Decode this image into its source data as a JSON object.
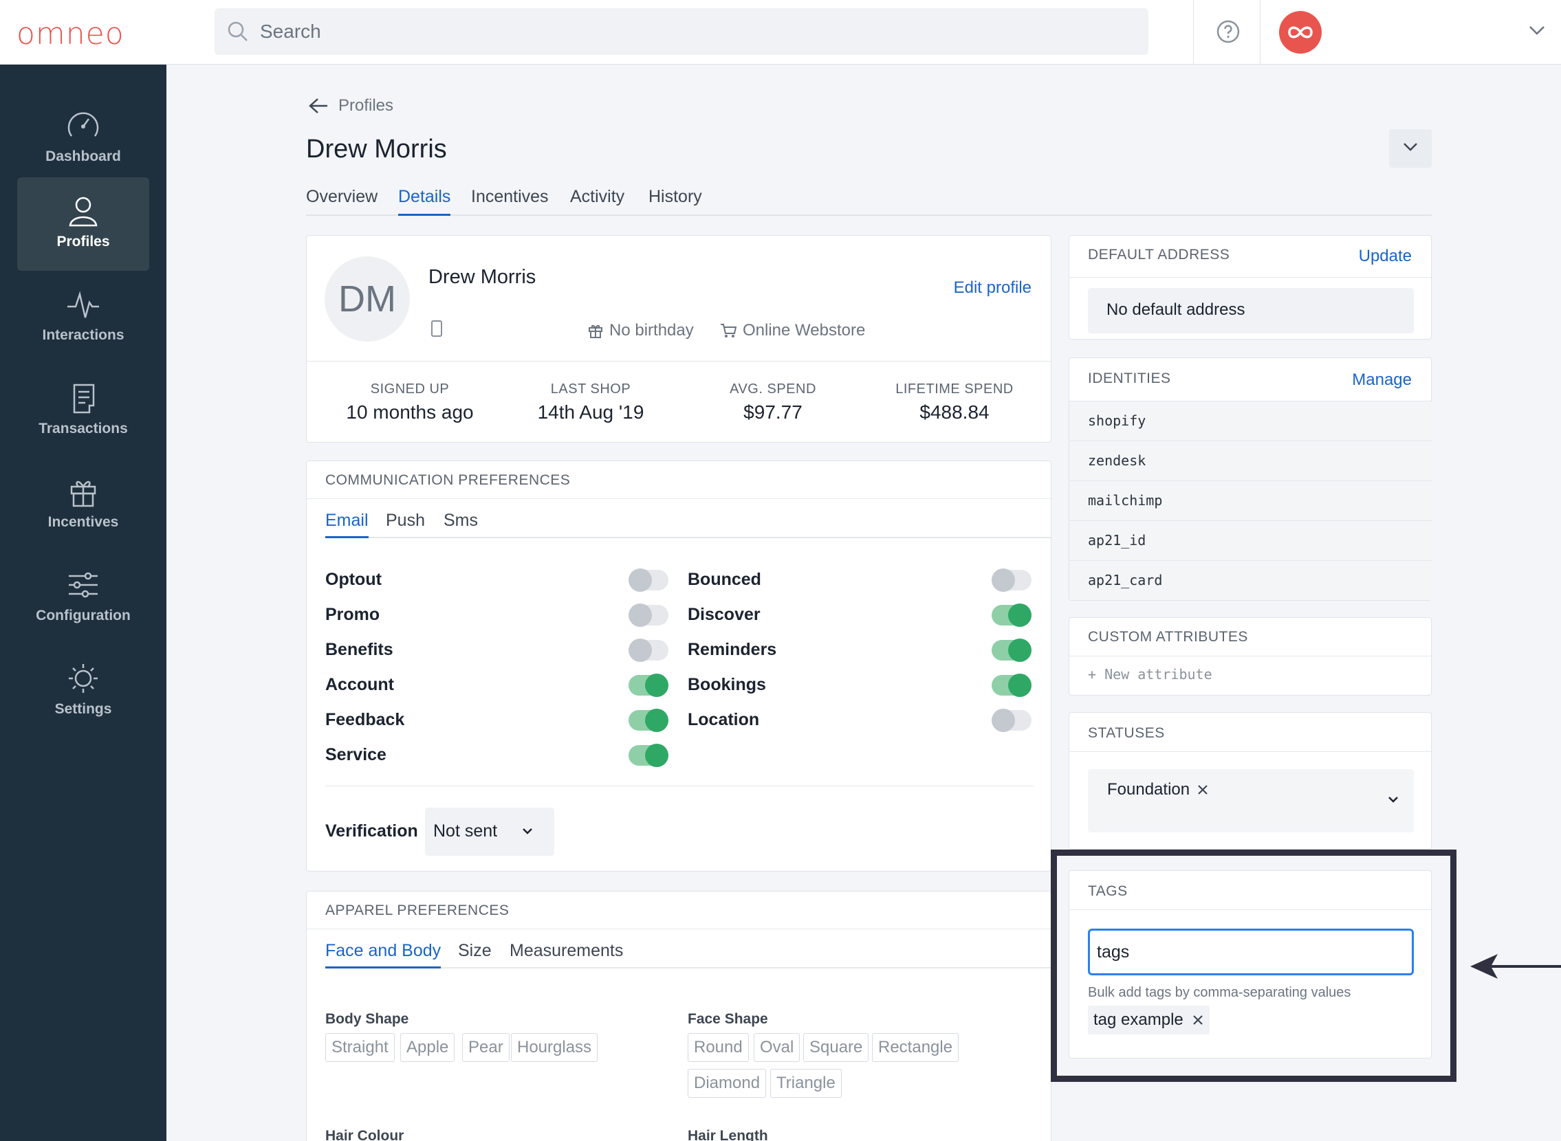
{
  "app": {
    "logo_text": "omneo",
    "brand_color": "#e8554e",
    "accent_color": "#1a64c8",
    "search": {
      "placeholder": "Search"
    }
  },
  "sidebar": {
    "items": [
      {
        "label": "Dashboard",
        "icon": "gauge-icon"
      },
      {
        "label": "Profiles",
        "icon": "user-icon",
        "active": true
      },
      {
        "label": "Interactions",
        "icon": "pulse-icon"
      },
      {
        "label": "Transactions",
        "icon": "receipt-icon"
      },
      {
        "label": "Incentives",
        "icon": "gift-icon"
      },
      {
        "label": "Configuration",
        "icon": "sliders-icon"
      },
      {
        "label": "Settings",
        "icon": "gear-icon"
      }
    ]
  },
  "header": {
    "back_label": "Profiles",
    "title": "Drew Morris",
    "tabs": [
      "Overview",
      "Details",
      "Incentives",
      "Activity",
      "History"
    ],
    "active_tab": "Details"
  },
  "profile": {
    "initials": "DM",
    "name": "Drew Morris",
    "edit_label": "Edit profile",
    "birthday": "No birthday",
    "source": "Online Webstore",
    "stats": [
      {
        "label": "SIGNED UP",
        "value": "10 months ago"
      },
      {
        "label": "LAST SHOP",
        "value": "14th Aug '19"
      },
      {
        "label": "AVG. SPEND",
        "value": "$97.77"
      },
      {
        "label": "LIFETIME SPEND",
        "value": "$488.84"
      }
    ]
  },
  "communication": {
    "heading": "COMMUNICATION PREFERENCES",
    "tabs": [
      "Email",
      "Push",
      "Sms"
    ],
    "active_tab": "Email",
    "left": [
      {
        "label": "Optout",
        "on": false
      },
      {
        "label": "Promo",
        "on": false
      },
      {
        "label": "Benefits",
        "on": false
      },
      {
        "label": "Account",
        "on": true
      },
      {
        "label": "Feedback",
        "on": true
      },
      {
        "label": "Service",
        "on": true
      }
    ],
    "right": [
      {
        "label": "Bounced",
        "on": false
      },
      {
        "label": "Discover",
        "on": true
      },
      {
        "label": "Reminders",
        "on": true
      },
      {
        "label": "Bookings",
        "on": true
      },
      {
        "label": "Location",
        "on": false
      }
    ],
    "verification_label": "Verification",
    "verification_value": "Not sent"
  },
  "apparel": {
    "heading": "APPAREL PREFERENCES",
    "tabs": [
      "Face and Body",
      "Size",
      "Measurements"
    ],
    "active_tab": "Face and Body",
    "body_shape": {
      "label": "Body Shape",
      "options": [
        "Straight",
        "Apple",
        "Pear",
        "Hourglass"
      ]
    },
    "face_shape": {
      "label": "Face Shape",
      "options": [
        "Round",
        "Oval",
        "Square",
        "Rectangle",
        "Diamond",
        "Triangle"
      ]
    },
    "hair_colour_label": "Hair Colour",
    "hair_length_label": "Hair Length"
  },
  "address": {
    "heading": "DEFAULT ADDRESS",
    "action": "Update",
    "value": "No default address"
  },
  "identities": {
    "heading": "IDENTITIES",
    "action": "Manage",
    "items": [
      "shopify",
      "zendesk",
      "mailchimp",
      "ap21_id",
      "ap21_card"
    ]
  },
  "custom_attributes": {
    "heading": "CUSTOM ATTRIBUTES",
    "new_label": "+ New attribute"
  },
  "statuses": {
    "heading": "STATUSES",
    "selected": "Foundation"
  },
  "tags": {
    "heading": "TAGS",
    "input_value": "tags",
    "help": "Bulk add tags by comma-separating values",
    "items": [
      "tag example"
    ]
  }
}
